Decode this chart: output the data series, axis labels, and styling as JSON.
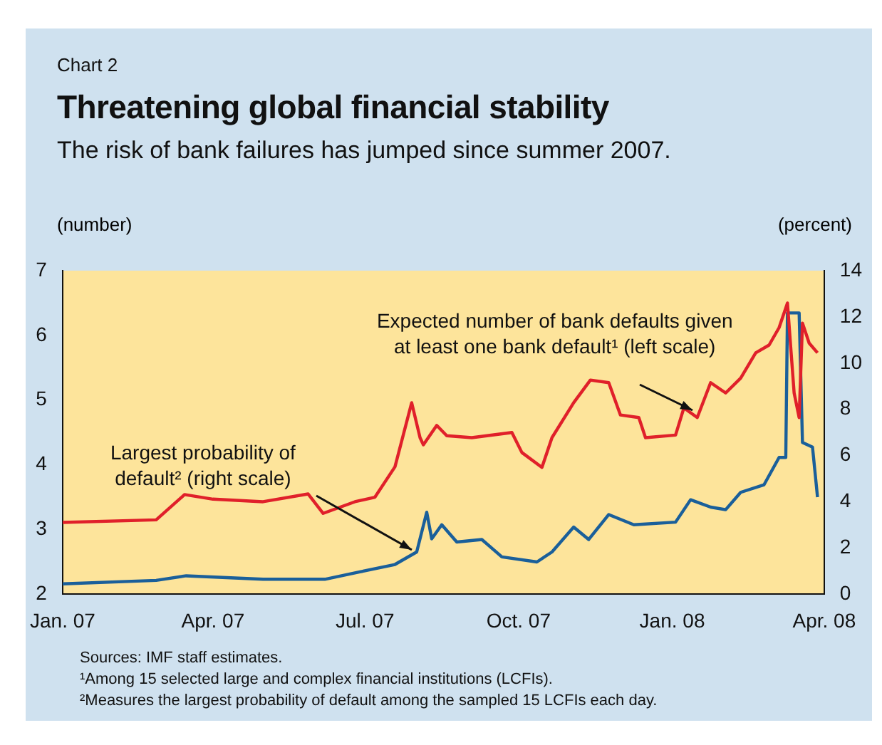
{
  "chart_data": {
    "type": "line",
    "title": "Threatening global financial stability",
    "subtitle": "The risk of bank failures has jumped since summer 2007.",
    "ylabel": "(number)",
    "y2label": "(percent)",
    "annotations": [
      "Chart 2",
      {
        "text": "Expected number of bank defaults given at least one bank default¹ (left scale)",
        "x": "2008-01-16",
        "y": 4.8
      },
      {
        "text": "Largest probability of default² (right scale)",
        "x": "2007-08-01",
        "y": 2.65
      },
      "Sources: IMF staff estimates.",
      "¹Among 15 selected large and complex financial institutions (LCFIs).",
      "²Measures the largest probability of default among the sampled 15 LCFIs each day."
    ],
    "xlim": [
      "2007-01",
      "2008-04"
    ],
    "xticks": [
      {
        "value": "2007-01",
        "label": "Jan. 07"
      },
      {
        "value": "2007-04",
        "label": "Apr. 07"
      },
      {
        "value": "2007-07",
        "label": "Jul. 07"
      },
      {
        "value": "2007-10",
        "label": "Oct. 07"
      },
      {
        "value": "2008-01",
        "label": "Jan. 08"
      },
      {
        "value": "2008-04",
        "label": "Apr. 08"
      }
    ],
    "ylim": [
      2,
      7
    ],
    "yticks": [
      2,
      3,
      4,
      5,
      6,
      7
    ],
    "y2lim": [
      0,
      14
    ],
    "y2ticks": [
      0,
      2,
      4,
      6,
      8,
      10,
      12,
      14
    ],
    "grid": false,
    "legend": false,
    "marker": "none",
    "line_style": "solid",
    "series": [
      {
        "color": "#e0202a",
        "x": [
          "2007-01-01",
          "2007-02-26",
          "2007-03-15",
          "2007-04-01",
          "2007-05-01",
          "2007-05-28",
          "2007-06-06",
          "2007-06-25",
          "2007-07-07",
          "2007-07-19",
          "2007-07-29",
          "2007-08-03",
          "2007-08-05",
          "2007-08-13",
          "2007-08-19",
          "2007-09-03",
          "2007-09-27",
          "2007-10-03",
          "2007-10-15",
          "2007-10-21",
          "2007-11-03",
          "2007-11-13",
          "2007-11-24",
          "2007-12-01",
          "2007-12-12",
          "2007-12-16",
          "2008-01-03",
          "2008-01-08",
          "2008-01-16",
          "2008-01-24",
          "2008-02-02",
          "2008-02-11",
          "2008-02-20",
          "2008-02-28",
          "2008-03-05",
          "2008-03-10",
          "2008-03-14",
          "2008-03-17",
          "2008-03-19",
          "2008-03-23",
          "2008-03-28"
        ],
        "values": [
          3.11,
          3.15,
          3.54,
          3.47,
          3.43,
          3.55,
          3.25,
          3.43,
          3.5,
          3.97,
          4.96,
          4.42,
          4.31,
          4.61,
          4.45,
          4.42,
          4.5,
          4.19,
          3.96,
          4.42,
          4.96,
          5.31,
          5.27,
          4.77,
          4.73,
          4.42,
          4.46,
          4.88,
          4.73,
          5.27,
          5.11,
          5.34,
          5.73,
          5.85,
          6.12,
          6.5,
          5.11,
          4.73,
          6.19,
          5.88,
          5.73
        ]
      },
      {
        "color": "#1a5f9a",
        "axis": "y2",
        "x": [
          "2007-01-01",
          "2007-02-26",
          "2007-03-16",
          "2007-05-01",
          "2007-06-07",
          "2007-06-28",
          "2007-07-19",
          "2007-08-01",
          "2007-08-07",
          "2007-08-10",
          "2007-08-16",
          "2007-08-25",
          "2007-09-09",
          "2007-09-21",
          "2007-10-12",
          "2007-10-21",
          "2007-11-03",
          "2007-11-12",
          "2007-11-24",
          "2007-12-09",
          "2008-01-03",
          "2008-01-12",
          "2008-01-24",
          "2008-02-02",
          "2008-02-11",
          "2008-02-25",
          "2008-03-05",
          "2008-03-09",
          "2008-03-10",
          "2008-03-17",
          "2008-03-19",
          "2008-03-25",
          "2008-03-28"
        ],
        "values": [
          0.45,
          0.6,
          0.8,
          0.65,
          0.65,
          0.97,
          1.29,
          1.83,
          3.55,
          2.4,
          3.01,
          2.26,
          2.37,
          1.62,
          1.4,
          1.83,
          2.91,
          2.37,
          3.45,
          3.01,
          3.12,
          4.09,
          3.77,
          3.66,
          4.41,
          4.74,
          5.92,
          5.92,
          12.17,
          12.17,
          6.57,
          6.37,
          4.2
        ]
      }
    ]
  }
}
